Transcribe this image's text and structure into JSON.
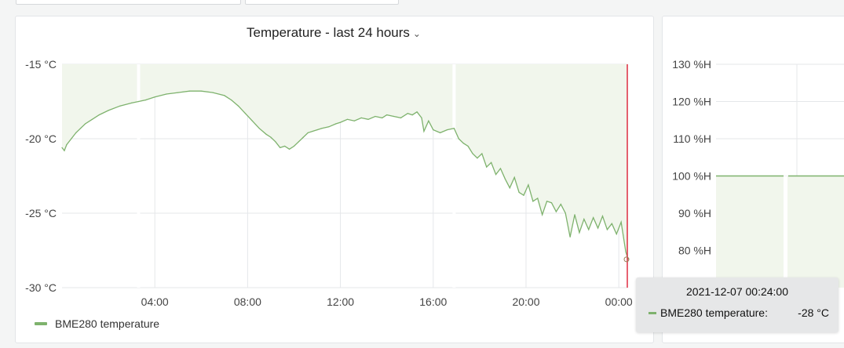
{
  "panel_left": {
    "title": "Temperature - last 24 hours",
    "chevron_icon": "chevron-down-icon",
    "legend": {
      "label": "BME280 temperature",
      "color": "#7eb26d"
    }
  },
  "tooltip": {
    "time": "2021-12-07 00:24:00",
    "series": "BME280 temperature:",
    "value": "-28 °C"
  },
  "colors": {
    "series": "#7eb26d",
    "fill": "#f1f6ec",
    "marker": "#e02f44",
    "grid": "#e5e7ea"
  },
  "chart_data": [
    {
      "type": "line",
      "title": "Temperature - last 24 hours",
      "y_unit": "°C",
      "ylim": [
        -30,
        -15
      ],
      "y_ticks": [
        "-15 °C",
        "-20 °C",
        "-25 °C",
        "-30 °C"
      ],
      "y_tick_values": [
        -15,
        -20,
        -25,
        -30
      ],
      "x_range_hours": [
        0.0,
        24.4
      ],
      "x_ticks": [
        "04:00",
        "08:00",
        "12:00",
        "16:00",
        "20:00",
        "00:00"
      ],
      "x_tick_values": [
        4,
        8,
        12,
        16,
        20,
        24
      ],
      "grid": true,
      "threshold_fill": "above series",
      "marker_hour": 24.4,
      "series": [
        {
          "name": "BME280 temperature",
          "x": [
            0.0,
            0.1,
            0.2,
            0.4,
            0.6,
            0.8,
            1.0,
            1.3,
            1.6,
            2.0,
            2.5,
            3.0,
            3.3,
            3.6,
            4.0,
            4.5,
            5.0,
            5.5,
            6.0,
            6.5,
            7.0,
            7.3,
            7.6,
            7.9,
            8.2,
            8.5,
            8.8,
            9.0,
            9.2,
            9.4,
            9.6,
            9.8,
            10.0,
            10.2,
            10.4,
            10.6,
            10.8,
            11.0,
            11.2,
            11.5,
            11.8,
            12.0,
            12.3,
            12.6,
            12.9,
            13.2,
            13.5,
            13.8,
            14.0,
            14.3,
            14.6,
            14.9,
            15.1,
            15.3,
            15.5,
            15.6,
            15.8,
            16.0,
            16.3,
            16.6,
            16.9,
            17.1,
            17.3,
            17.5,
            17.7,
            17.9,
            18.1,
            18.3,
            18.5,
            18.7,
            18.9,
            19.1,
            19.3,
            19.5,
            19.7,
            19.9,
            20.1,
            20.3,
            20.5,
            20.7,
            20.9,
            21.1,
            21.3,
            21.5,
            21.7,
            21.9,
            22.1,
            22.3,
            22.5,
            22.7,
            22.9,
            23.1,
            23.3,
            23.5,
            23.7,
            23.9,
            24.1,
            24.3,
            24.4
          ],
          "values": [
            -20.6,
            -20.8,
            -20.4,
            -20.0,
            -19.6,
            -19.3,
            -19.0,
            -18.7,
            -18.4,
            -18.1,
            -17.8,
            -17.6,
            -17.5,
            -17.4,
            -17.2,
            -17.0,
            -16.9,
            -16.8,
            -16.8,
            -16.9,
            -17.1,
            -17.4,
            -17.8,
            -18.3,
            -18.8,
            -19.3,
            -19.7,
            -19.9,
            -20.2,
            -20.6,
            -20.5,
            -20.7,
            -20.5,
            -20.2,
            -19.9,
            -19.6,
            -19.5,
            -19.4,
            -19.3,
            -19.2,
            -19.0,
            -18.9,
            -18.7,
            -18.8,
            -18.6,
            -18.7,
            -18.5,
            -18.6,
            -18.4,
            -18.5,
            -18.6,
            -18.3,
            -18.4,
            -18.2,
            -18.6,
            -19.5,
            -18.8,
            -19.4,
            -19.6,
            -19.4,
            -19.3,
            -20.0,
            -20.3,
            -20.5,
            -21.0,
            -21.3,
            -21.0,
            -21.9,
            -21.6,
            -22.4,
            -22.0,
            -22.7,
            -23.3,
            -22.6,
            -23.6,
            -23.8,
            -23.1,
            -24.2,
            -24.0,
            -25.1,
            -24.2,
            -24.3,
            -24.9,
            -24.4,
            -25.0,
            -26.6,
            -25.1,
            -26.3,
            -25.4,
            -26.1,
            -25.3,
            -26.0,
            -25.2,
            -26.1,
            -25.7,
            -26.4,
            -25.6,
            -27.6,
            -28.1
          ]
        }
      ]
    },
    {
      "type": "line",
      "y_unit": "%H",
      "y_ticks": [
        "130 %H",
        "120 %H",
        "110 %H",
        "100 %H",
        "90 %H",
        "80 %H"
      ],
      "y_tick_values": [
        130,
        120,
        110,
        100,
        90,
        80
      ],
      "ylim": [
        70,
        130
      ],
      "grid": true,
      "series": [
        {
          "x": [
            0,
            1,
            2,
            3
          ],
          "values": [
            100,
            100,
            100,
            100
          ]
        }
      ]
    }
  ]
}
